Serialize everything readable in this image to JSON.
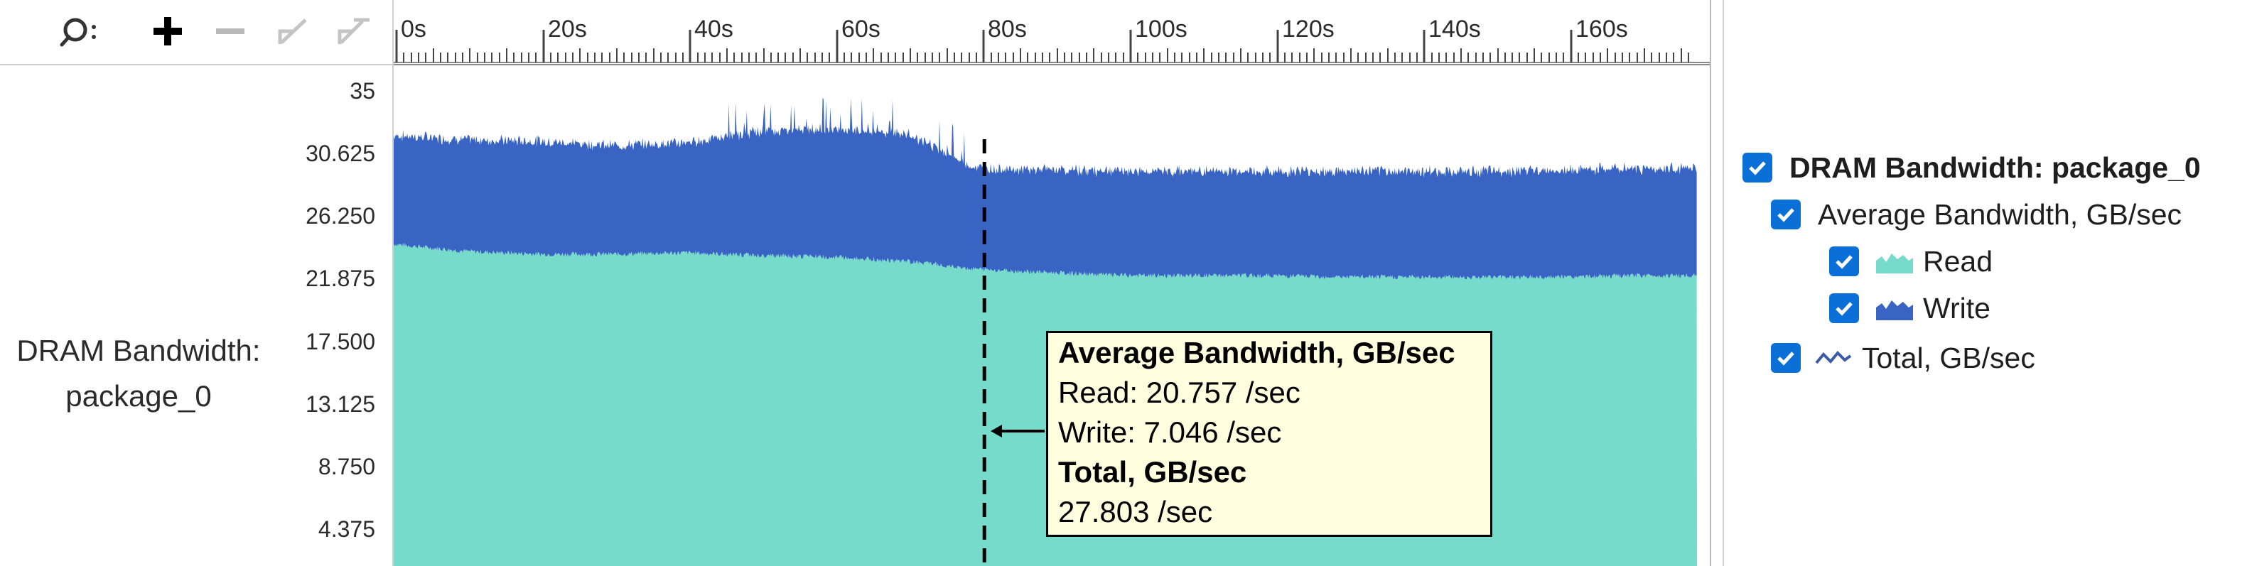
{
  "toolbar": {
    "search_label": "Search",
    "zoom_in_label": "Zoom in",
    "zoom_out_label": "Zoom out",
    "undo_zoom_label": "Undo zoom",
    "reset_zoom_label": "Reset zoom"
  },
  "series_label": {
    "line1": "DRAM Bandwidth:",
    "line2": "package_0"
  },
  "legend": {
    "group_title": "DRAM Bandwidth: package_0",
    "subgroup_title": "Average Bandwidth, GB/sec",
    "items": [
      {
        "label": "Read",
        "color": "#77dbcc",
        "icon": "area-icon"
      },
      {
        "label": "Write",
        "color": "#3964c3",
        "icon": "area-icon"
      }
    ],
    "total_label": "Total, GB/sec",
    "total_icon": "line-icon"
  },
  "tooltip": {
    "title": "Average Bandwidth, GB/sec",
    "read": "Read: 20.757 /sec",
    "write": "Write: 7.046 /sec",
    "total_title": "Total, GB/sec",
    "total_value": "27.803 /sec"
  },
  "colors": {
    "read": "#77dbcc",
    "write": "#3964c3",
    "checkbox": "#0a6fd6",
    "tooltip_bg": "#ffffe0"
  },
  "chart_data": {
    "type": "area",
    "stacked": true,
    "x_unit": "s",
    "x_ticks": [
      "0s",
      "20s",
      "40s",
      "60s",
      "80s",
      "100s",
      "120s",
      "140s",
      "160s"
    ],
    "xlim": [
      0,
      176
    ],
    "ylim": [
      0,
      35
    ],
    "y_ticks": [
      "35",
      "30.625",
      "26.250",
      "21.875",
      "17.500",
      "13.125",
      "8.750",
      "4.375"
    ],
    "cursor_x": 79.5,
    "series": [
      {
        "name": "Read",
        "x": [
          0,
          10,
          20,
          30,
          40,
          50,
          60,
          70,
          79.5,
          90,
          100,
          110,
          120,
          130,
          140,
          150,
          160,
          170,
          176
        ],
        "values": [
          22.5,
          22.0,
          21.8,
          21.8,
          21.9,
          21.7,
          21.6,
          21.3,
          20.757,
          20.5,
          20.3,
          20.3,
          20.3,
          20.2,
          20.2,
          20.2,
          20.2,
          20.3,
          20.3
        ]
      },
      {
        "name": "Write",
        "x": [
          0,
          10,
          20,
          30,
          40,
          50,
          60,
          70,
          79.5,
          90,
          100,
          110,
          120,
          130,
          140,
          150,
          160,
          170,
          176
        ],
        "values": [
          7.6,
          7.8,
          7.9,
          7.6,
          7.7,
          8.7,
          9.0,
          8.9,
          7.046,
          7.2,
          7.3,
          7.3,
          7.3,
          7.4,
          7.4,
          7.4,
          7.5,
          7.5,
          7.5
        ]
      }
    ]
  }
}
